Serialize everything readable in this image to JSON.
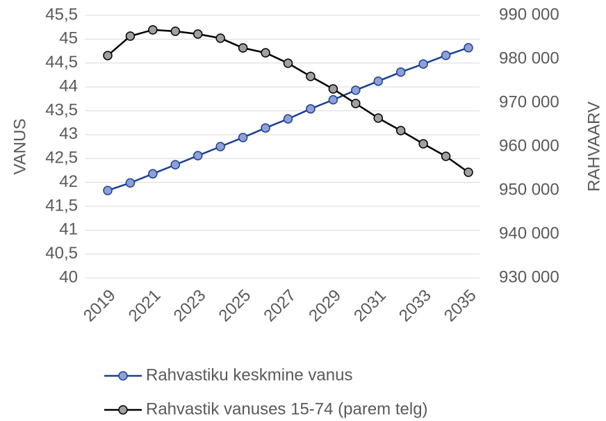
{
  "chart_data": {
    "type": "line",
    "categories": [
      "2019",
      null,
      "2021",
      null,
      "2023",
      null,
      "2025",
      null,
      "2027",
      null,
      "2029",
      null,
      "2031",
      null,
      "2033",
      null,
      "2035"
    ],
    "series": [
      {
        "name": "Rahvastiku keskmine vanus",
        "color": "#1a3f94",
        "marker_fill": "#8ea0d6",
        "values": [
          41.83,
          41.99,
          42.18,
          42.37,
          42.56,
          42.75,
          42.94,
          43.14,
          43.33,
          43.54,
          43.73,
          43.93,
          44.12,
          44.31,
          44.48,
          44.66,
          44.82
        ]
      },
      {
        "name": "Rahvastik vanuses 15-74 (parem telg)",
        "color": "#000000",
        "marker_fill": "#a0a0a0",
        "axis": "y2",
        "values": [
          980800,
          985240,
          986670,
          986350,
          985710,
          984760,
          982540,
          981430,
          979050,
          976030,
          973170,
          969840,
          966510,
          963650,
          960630,
          957780,
          954130
        ]
      }
    ],
    "ylabel": "VANUS",
    "y2label": "RAHVAARV",
    "ylim": [
      40,
      45.5
    ],
    "yticks": [
      40,
      {
        "value": 40.5,
        "label": "40,5"
      },
      41,
      {
        "value": 41.5,
        "label": "41,5"
      },
      42,
      {
        "value": 42.5,
        "label": "42,5"
      },
      43,
      {
        "value": 43.5,
        "label": "43,5"
      },
      44,
      {
        "value": 44.5,
        "label": "44,5"
      },
      45,
      {
        "value": 45.5,
        "label": "45,5"
      }
    ],
    "y2lim": [
      930000,
      990000
    ],
    "y2ticks": [
      {
        "value": 930000,
        "label": "930 000"
      },
      {
        "value": 940000,
        "label": "940 000"
      },
      {
        "value": 950000,
        "label": "950 000"
      },
      {
        "value": 960000,
        "label": "960 000"
      },
      {
        "value": 970000,
        "label": "970 000"
      },
      {
        "value": 980000,
        "label": "980 000"
      },
      {
        "value": 990000,
        "label": "990 000"
      }
    ],
    "grid": true,
    "legend": "bottom"
  }
}
